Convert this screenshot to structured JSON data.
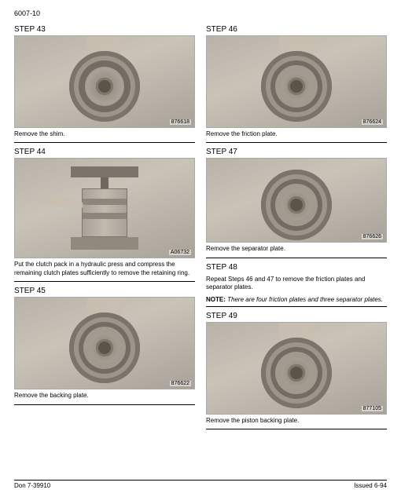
{
  "page_header": "6007-10",
  "footer_left": "Don 7-39910",
  "footer_right": "Issued 6-94",
  "left": {
    "step43": {
      "title": "STEP 43",
      "fig_num": "876618",
      "caption": "Remove the shim."
    },
    "step44": {
      "title": "STEP 44",
      "fig_num": "A06732",
      "caption": "Put the clutch pack in a hydraulic press and compress the remaining clutch plates sufficiently to remove the retaining ring."
    },
    "step45": {
      "title": "STEP 45",
      "fig_num": "876622",
      "caption": "Remove the backing plate."
    }
  },
  "right": {
    "step46": {
      "title": "STEP 46",
      "fig_num": "876624",
      "caption": "Remove the friction plate."
    },
    "step47": {
      "title": "STEP 47",
      "fig_num": "876626",
      "caption": "Remove the separator plate."
    },
    "step48": {
      "title": "STEP 48",
      "body": "Repeat Steps 46 and 47 to remove the friction plates and separator plates.",
      "note_label": "NOTE:",
      "note_body": "There are four friction plates and three separator plates."
    },
    "step49": {
      "title": "STEP 49",
      "fig_num": "877105",
      "caption": "Remove the piston backing plate."
    }
  }
}
